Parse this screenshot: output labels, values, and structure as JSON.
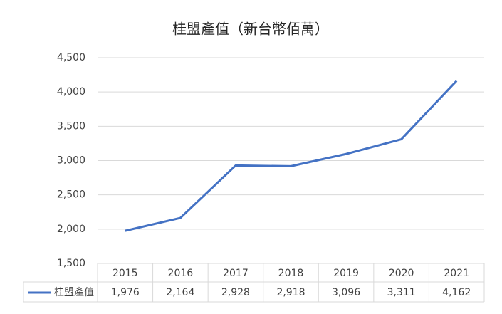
{
  "chart_data": {
    "type": "line",
    "title": "桂盟產值（新台幣佰萬）",
    "categories": [
      "2015",
      "2016",
      "2017",
      "2018",
      "2019",
      "2020",
      "2021"
    ],
    "series": [
      {
        "name": "桂盟產值",
        "color": "#4472c4",
        "values": [
          1976,
          2164,
          2928,
          2918,
          3096,
          3311,
          4162
        ],
        "value_labels": [
          "1,976",
          "2,164",
          "2,928",
          "2,918",
          "3,096",
          "3,311",
          "4,162"
        ]
      }
    ],
    "ylim": [
      1500,
      4500
    ],
    "yticks": [
      {
        "value": 1500,
        "label": "1,500"
      },
      {
        "value": 2000,
        "label": "2,000"
      },
      {
        "value": 2500,
        "label": "2,500"
      },
      {
        "value": 3000,
        "label": "3,000"
      },
      {
        "value": 3500,
        "label": "3,500"
      },
      {
        "value": 4000,
        "label": "4,000"
      },
      {
        "value": 4500,
        "label": "4,500"
      }
    ],
    "grid": true,
    "data_table": true
  }
}
